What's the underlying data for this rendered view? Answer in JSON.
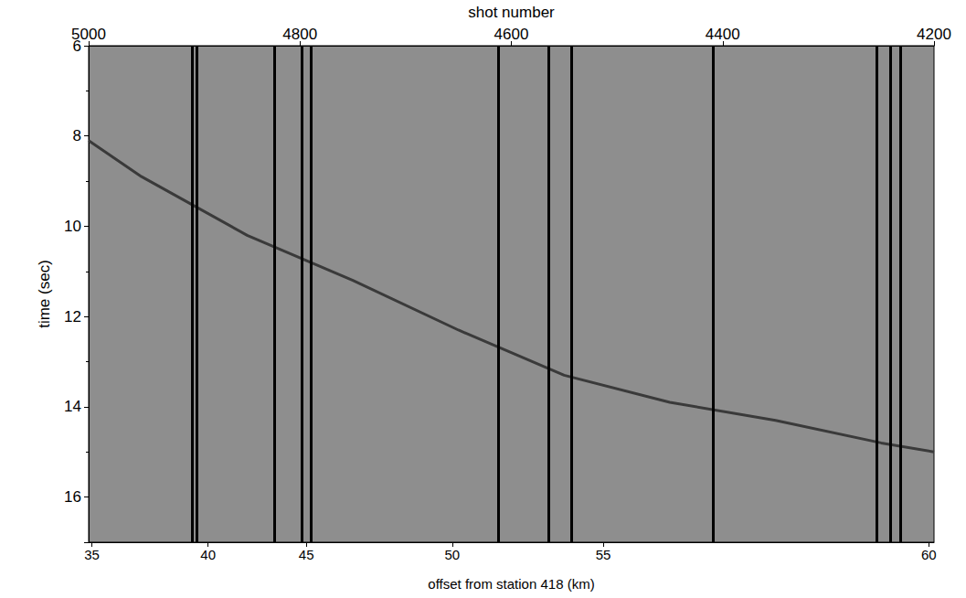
{
  "chart_data": {
    "type": "seismic_section",
    "x_label": "shot number",
    "y_label": "time (sec)",
    "x2_label": "offset from station 418 (km)",
    "xlim": [
      5000,
      4200
    ],
    "xticks": [
      5000,
      4800,
      4600,
      4400,
      4200
    ],
    "ylim": [
      6,
      17
    ],
    "yticks": [
      6,
      8,
      10,
      12,
      14,
      16
    ],
    "offset_ticks": [
      {
        "value": 35,
        "shot": 4997
      },
      {
        "value": 40,
        "shot": 4887
      },
      {
        "value": 45,
        "shot": 4794
      },
      {
        "value": 50,
        "shot": 4656
      },
      {
        "value": 55,
        "shot": 4513
      },
      {
        "value": 60,
        "shot": 4205
      }
    ],
    "dark_traces": [
      4902,
      4898,
      4824,
      4798,
      4790,
      4612,
      4565,
      4543,
      4409,
      4254,
      4241,
      4232
    ],
    "arrival": {
      "x": [
        5000,
        4950,
        4850,
        4750,
        4650,
        4550,
        4450,
        4350,
        4250,
        4200
      ],
      "values": [
        8.1,
        8.9,
        10.2,
        11.2,
        12.3,
        13.3,
        13.9,
        14.3,
        14.8,
        15.0
      ]
    },
    "grid": false
  }
}
